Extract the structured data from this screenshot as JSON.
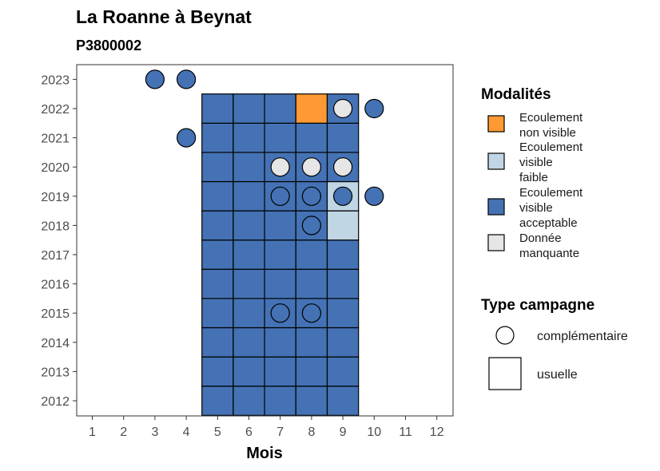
{
  "chart_data": {
    "type": "heatmap",
    "title": "La Roanne à Beynat",
    "subtitle": "P3800002",
    "xlabel": "Mois",
    "ylabel": "",
    "x_ticks": [
      1,
      2,
      3,
      4,
      5,
      6,
      7,
      8,
      9,
      10,
      11,
      12
    ],
    "y_ticks": [
      2012,
      2013,
      2014,
      2015,
      2016,
      2017,
      2018,
      2019,
      2020,
      2021,
      2022,
      2023
    ],
    "xlim": [
      0.5,
      12.5
    ],
    "ylim": [
      2011.5,
      2023.5
    ],
    "legend_placement": "right",
    "grid": false,
    "modalites": {
      "title": "Modalités",
      "items": [
        {
          "key": "non_visible",
          "label_lines": [
            "Ecoulement",
            "non visible"
          ],
          "color": "#FF9933"
        },
        {
          "key": "faible",
          "label_lines": [
            "Ecoulement",
            "visible",
            "faible"
          ],
          "color": "#C0D6E4"
        },
        {
          "key": "acceptable",
          "label_lines": [
            "Ecoulement",
            "visible",
            "acceptable"
          ],
          "color": "#4472B4"
        },
        {
          "key": "manquante",
          "label_lines": [
            "Donnée",
            "manquante"
          ],
          "color": "#E6E6E6"
        }
      ]
    },
    "type_campagne": {
      "title": "Type campagne",
      "items": [
        {
          "key": "complementaire",
          "label": "complémentaire",
          "shape": "circle"
        },
        {
          "key": "usuelle",
          "label": "usuelle",
          "shape": "square"
        }
      ]
    },
    "usuelle": [
      {
        "year": 2012,
        "months": [
          5,
          6,
          7,
          8,
          9
        ],
        "modalite": "acceptable"
      },
      {
        "year": 2013,
        "months": [
          5,
          6,
          7,
          8,
          9
        ],
        "modalite": "acceptable"
      },
      {
        "year": 2014,
        "months": [
          5,
          6,
          7,
          8,
          9
        ],
        "modalite": "acceptable"
      },
      {
        "year": 2015,
        "months": [
          5,
          6,
          7,
          8,
          9
        ],
        "modalite": "acceptable"
      },
      {
        "year": 2016,
        "months": [
          5,
          6,
          7,
          8,
          9
        ],
        "modalite": "acceptable"
      },
      {
        "year": 2017,
        "months": [
          5,
          6,
          7,
          8,
          9
        ],
        "modalite": "acceptable"
      },
      {
        "year": 2018,
        "months": [
          5,
          6,
          7,
          8
        ],
        "modalite": "acceptable"
      },
      {
        "year": 2018,
        "months": [
          9
        ],
        "modalite": "faible"
      },
      {
        "year": 2019,
        "months": [
          5,
          6,
          7,
          8
        ],
        "modalite": "acceptable"
      },
      {
        "year": 2019,
        "months": [
          9
        ],
        "modalite": "faible"
      },
      {
        "year": 2020,
        "months": [
          5,
          6,
          7,
          8,
          9
        ],
        "modalite": "acceptable"
      },
      {
        "year": 2021,
        "months": [
          5,
          6,
          7,
          8,
          9
        ],
        "modalite": "acceptable"
      },
      {
        "year": 2022,
        "months": [
          5,
          6,
          7
        ],
        "modalite": "acceptable"
      },
      {
        "year": 2022,
        "months": [
          8
        ],
        "modalite": "non_visible"
      },
      {
        "year": 2022,
        "months": [
          9
        ],
        "modalite": "acceptable"
      }
    ],
    "complementaire": [
      {
        "year": 2023,
        "month": 3,
        "modalite": "acceptable"
      },
      {
        "year": 2023,
        "month": 4,
        "modalite": "acceptable"
      },
      {
        "year": 2022,
        "month": 9,
        "modalite": "manquante"
      },
      {
        "year": 2022,
        "month": 10,
        "modalite": "acceptable"
      },
      {
        "year": 2021,
        "month": 4,
        "modalite": "acceptable"
      },
      {
        "year": 2020,
        "month": 7,
        "modalite": "manquante"
      },
      {
        "year": 2020,
        "month": 8,
        "modalite": "manquante"
      },
      {
        "year": 2020,
        "month": 9,
        "modalite": "manquante"
      },
      {
        "year": 2019,
        "month": 7,
        "modalite": "acceptable"
      },
      {
        "year": 2019,
        "month": 8,
        "modalite": "acceptable"
      },
      {
        "year": 2019,
        "month": 9,
        "modalite": "acceptable"
      },
      {
        "year": 2019,
        "month": 10,
        "modalite": "acceptable"
      },
      {
        "year": 2018,
        "month": 8,
        "modalite": "acceptable"
      },
      {
        "year": 2015,
        "month": 7,
        "modalite": "acceptable"
      },
      {
        "year": 2015,
        "month": 8,
        "modalite": "acceptable"
      }
    ]
  }
}
